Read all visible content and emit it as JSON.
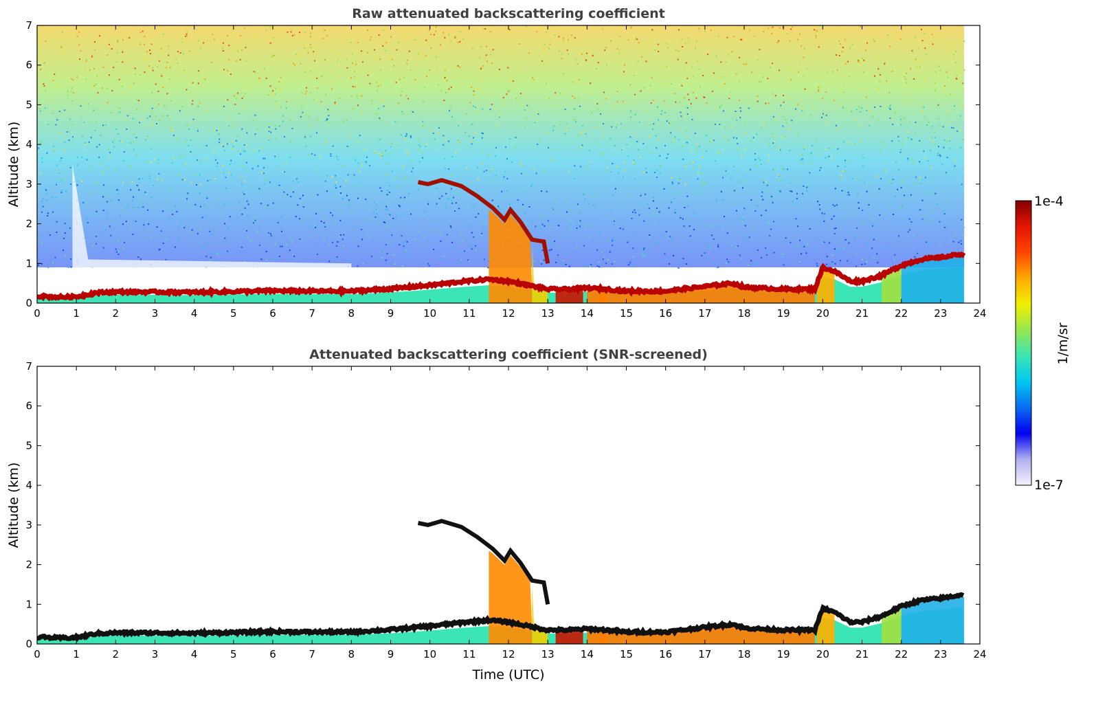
{
  "colors": {
    "boundary_layer": "#b80000",
    "screened_layer": "#111111",
    "background": "#ffffff"
  },
  "chart_data": [
    {
      "type": "heatmap",
      "title": "Raw attenuated backscattering coefficient",
      "xlabel": "",
      "ylabel": "Altitude (km)",
      "xlim": [
        0,
        24
      ],
      "ylim": [
        0,
        7
      ],
      "x_ticks": [
        "0",
        "1",
        "2",
        "3",
        "4",
        "5",
        "6",
        "7",
        "8",
        "9",
        "10",
        "11",
        "12",
        "13",
        "14",
        "15",
        "16",
        "17",
        "18",
        "19",
        "20",
        "21",
        "22",
        "23",
        "24"
      ],
      "y_ticks": [
        "0",
        "1",
        "2",
        "3",
        "4",
        "5",
        "6",
        "7"
      ],
      "data_end_time": 23.6,
      "grid": false
    },
    {
      "type": "heatmap",
      "title": "Attenuated backscattering coefficient (SNR-screened)",
      "xlabel": "Time (UTC)",
      "ylabel": "Altitude (km)",
      "xlim": [
        0,
        24
      ],
      "ylim": [
        0,
        7
      ],
      "x_ticks": [
        "0",
        "1",
        "2",
        "3",
        "4",
        "5",
        "6",
        "7",
        "8",
        "9",
        "10",
        "11",
        "12",
        "13",
        "14",
        "15",
        "16",
        "17",
        "18",
        "19",
        "20",
        "21",
        "22",
        "23",
        "24"
      ],
      "y_ticks": [
        "0",
        "1",
        "2",
        "3",
        "4",
        "5",
        "6",
        "7"
      ],
      "data_end_time": 23.6,
      "grid": false
    }
  ],
  "colorbar": {
    "max_label": "1e-4",
    "min_label": "1e-7",
    "unit_label": "1/m/sr",
    "stops": [
      "#f2f2fa",
      "#b0b0f0",
      "#0000f0",
      "#0a6cf0",
      "#00c8f0",
      "#3ce6b4",
      "#96e650",
      "#f0f000",
      "#ffaa00",
      "#ff4600",
      "#e61400",
      "#800000"
    ]
  },
  "features": {
    "boundary_layer_top_km": [
      [
        0,
        0.18
      ],
      [
        0.5,
        0.15
      ],
      [
        1,
        0.16
      ],
      [
        1.5,
        0.26
      ],
      [
        2,
        0.28
      ],
      [
        3,
        0.28
      ],
      [
        4,
        0.27
      ],
      [
        5,
        0.29
      ],
      [
        6,
        0.31
      ],
      [
        7,
        0.3
      ],
      [
        8,
        0.3
      ],
      [
        9,
        0.36
      ],
      [
        10,
        0.45
      ],
      [
        10.9,
        0.55
      ],
      [
        11.5,
        0.6
      ],
      [
        12,
        0.55
      ],
      [
        12.5,
        0.45
      ],
      [
        13,
        0.35
      ],
      [
        13.5,
        0.35
      ],
      [
        14,
        0.38
      ],
      [
        14.5,
        0.35
      ],
      [
        15,
        0.3
      ],
      [
        16,
        0.3
      ],
      [
        17,
        0.42
      ],
      [
        17.7,
        0.5
      ],
      [
        18,
        0.4
      ],
      [
        19,
        0.35
      ],
      [
        19.8,
        0.35
      ],
      [
        20,
        0.9
      ],
      [
        20.3,
        0.8
      ],
      [
        20.7,
        0.55
      ],
      [
        21,
        0.55
      ],
      [
        21.5,
        0.7
      ],
      [
        22,
        0.95
      ],
      [
        22.5,
        1.1
      ],
      [
        23,
        1.15
      ],
      [
        23.6,
        1.25
      ]
    ],
    "rising_aerosol_layer_km": [
      [
        9.7,
        3.05
      ],
      [
        9.95,
        3.0
      ],
      [
        10.3,
        3.1
      ],
      [
        10.8,
        2.95
      ],
      [
        11.2,
        2.7
      ],
      [
        11.6,
        2.4
      ],
      [
        11.9,
        2.1
      ],
      [
        12.05,
        2.35
      ],
      [
        12.3,
        2.05
      ],
      [
        12.6,
        1.6
      ],
      [
        12.9,
        1.55
      ],
      [
        13.0,
        1.0
      ]
    ]
  }
}
